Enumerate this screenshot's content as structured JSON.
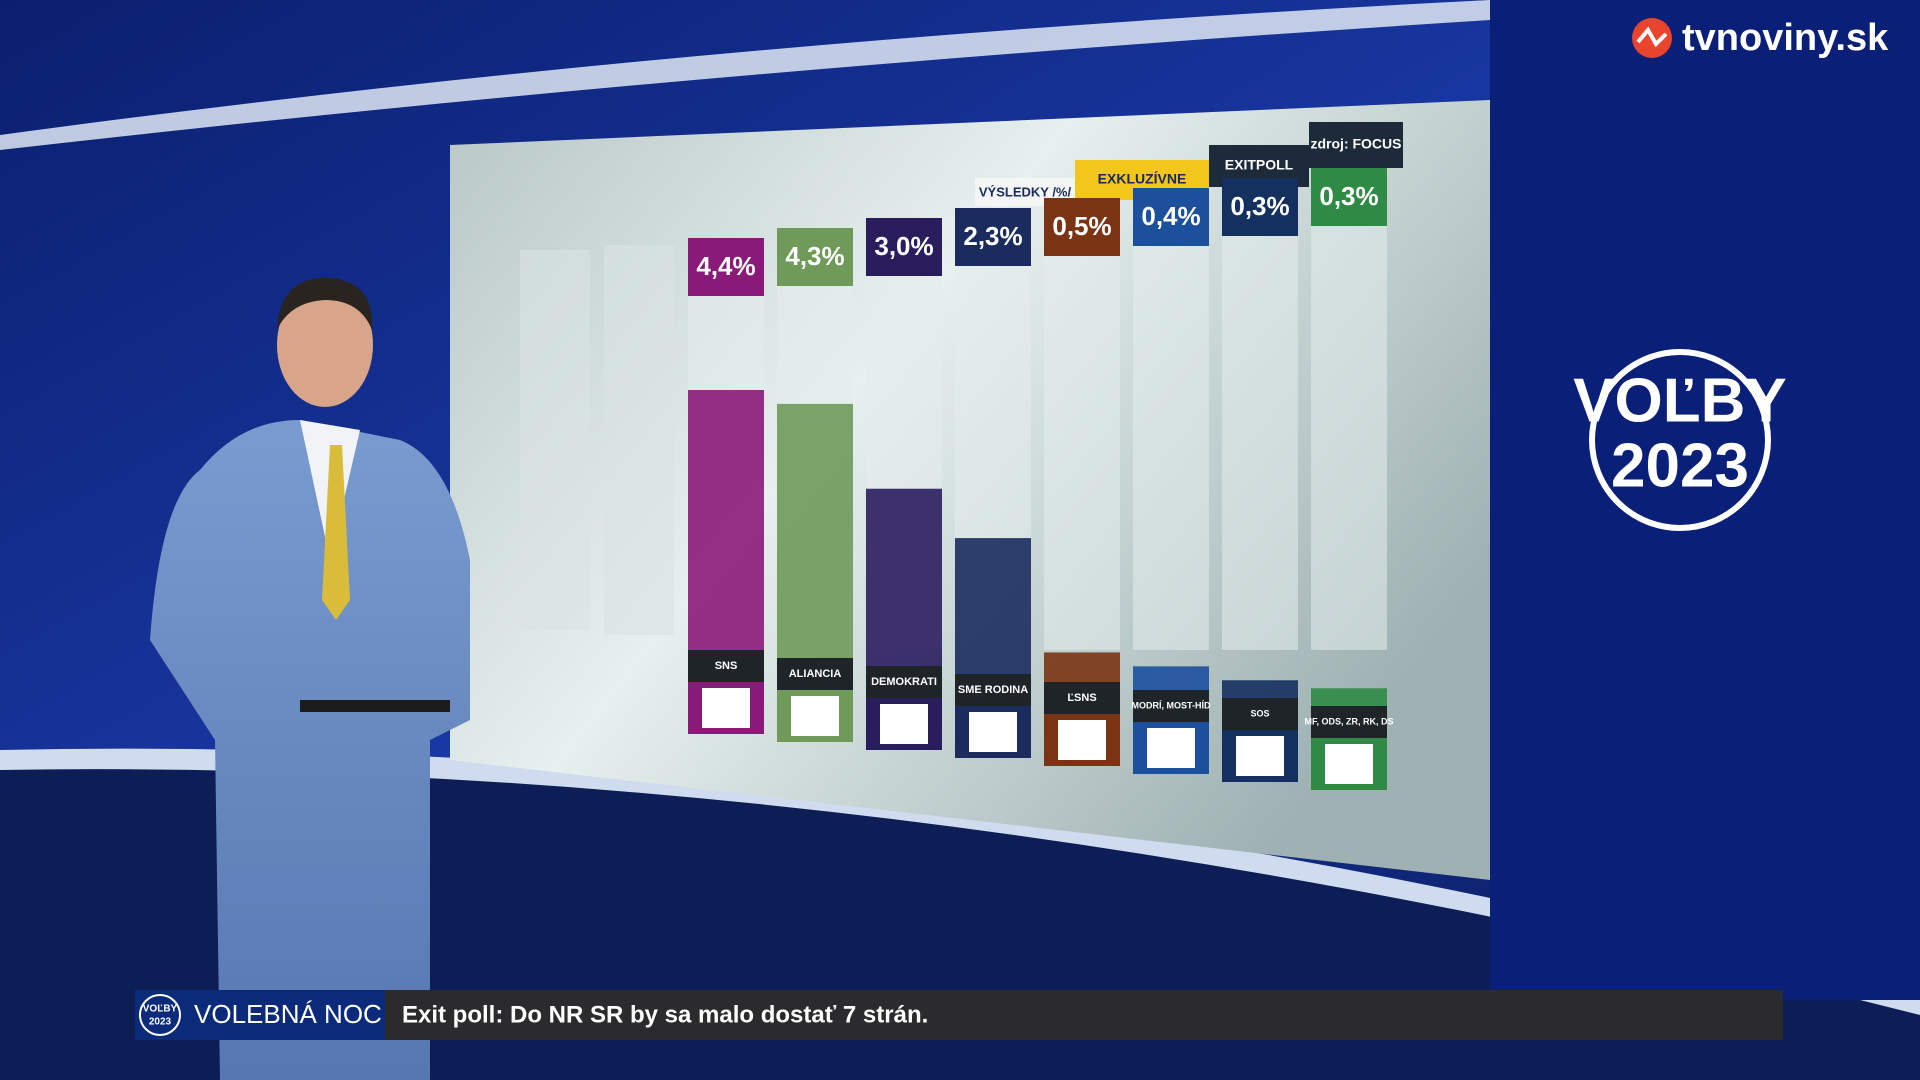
{
  "brand": "tvnoviny.sk",
  "logo": {
    "line1": "VOĽBY",
    "line2": "2023"
  },
  "lower_third": {
    "show": "VOLEBNÁ NOC",
    "headline": "Exit poll: Do NR SR by sa malo dostať 7 strán."
  },
  "chart_data": {
    "type": "bar",
    "headers": {
      "results": "VÝSLEDKY /%/",
      "exclusive": "EXKLUZÍVNE",
      "exitpoll": "EXITPOLL",
      "source": "zdroj: FOCUS"
    },
    "categories": [
      "SNS",
      "ALIANCIA",
      "DEMOKRATI",
      "SME RODINA",
      "ĽSNS",
      "MODRÍ, MOST-HÍD",
      "SOS",
      "MF, ODS, ZR, RK, DS"
    ],
    "values": [
      4.4,
      4.3,
      3.0,
      2.3,
      0.5,
      0.4,
      0.3,
      0.3
    ],
    "value_labels": [
      "4,4%",
      "4,3%",
      "3,0%",
      "2,3%",
      "0,5%",
      "0,4%",
      "0,3%",
      "0,3%"
    ],
    "colors": [
      "#8a1a78",
      "#6f9a5a",
      "#2a1d5e",
      "#1b2b5e",
      "#7a3414",
      "#1c4f9c",
      "#14305e",
      "#2f8a45"
    ]
  }
}
